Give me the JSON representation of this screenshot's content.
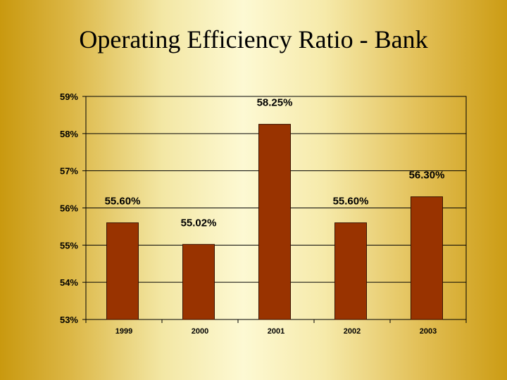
{
  "slide": {
    "title": "Operating Efficiency Ratio - Bank"
  },
  "chart_data": {
    "type": "bar",
    "categories": [
      "1999",
      "2000",
      "2001",
      "2002",
      "2003"
    ],
    "values": [
      55.6,
      55.02,
      58.25,
      55.6,
      56.3
    ],
    "data_labels": [
      "55.60%",
      "55.02%",
      "58.25%",
      "55.60%",
      "56.30%"
    ],
    "ylim": [
      53,
      59
    ],
    "yticks": [
      53,
      54,
      55,
      56,
      57,
      58,
      59
    ],
    "ytick_labels": [
      "53%",
      "54%",
      "55%",
      "56%",
      "57%",
      "58%",
      "59%"
    ],
    "grid": true,
    "legend": "none",
    "colors": {
      "bar_fill": "#993300",
      "bar_stroke": "#3a1200",
      "plot_border": "#000000",
      "gridline": "#000000"
    }
  }
}
